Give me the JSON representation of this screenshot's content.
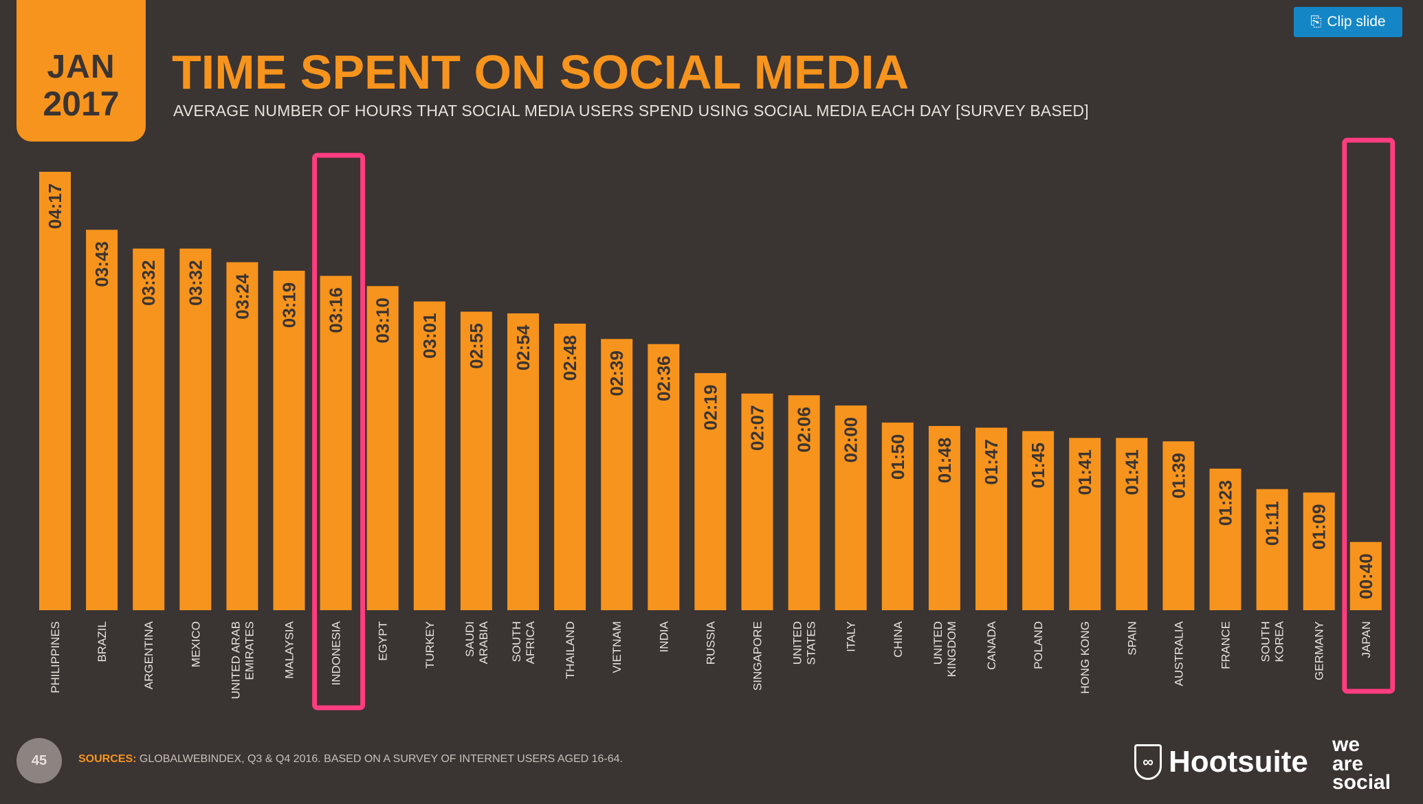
{
  "header": {
    "badge_month": "JAN",
    "badge_year": "2017",
    "title": "TIME SPENT ON SOCIAL MEDIA",
    "subtitle": "AVERAGE NUMBER OF HOURS THAT SOCIAL MEDIA USERS SPEND USING SOCIAL MEDIA EACH DAY [SURVEY BASED]"
  },
  "toolbar": {
    "clip_label": "Clip slide",
    "clip_icon": "clip-icon"
  },
  "footer": {
    "page_number": "45",
    "sources_label": "SOURCES:",
    "sources_text": "GLOBALWEBINDEX, Q3 & Q4 2016. BASED ON A SURVEY OF INTERNET USERS AGED 16-64.",
    "brand_hootsuite": "Hootsuite",
    "brand_was": [
      "we",
      "are",
      "social"
    ]
  },
  "colors": {
    "background": "#3a3432",
    "bar": "#f7941d",
    "bar_label": "#3a3432",
    "highlight": "#ff3d7f",
    "axis_label": "#e8e2dc"
  },
  "chart_data": {
    "type": "bar",
    "title": "TIME SPENT ON SOCIAL MEDIA",
    "xlabel": "",
    "ylabel": "",
    "value_unit": "minutes",
    "ylim": [
      0,
      257
    ],
    "categories": [
      [
        "PHILIPPINES"
      ],
      [
        "BRAZIL"
      ],
      [
        "ARGENTINA"
      ],
      [
        "MEXICO"
      ],
      [
        "UNITED ARAB",
        "EMIRATES"
      ],
      [
        "MALAYSIA"
      ],
      [
        "INDONESIA"
      ],
      [
        "EGYPT"
      ],
      [
        "TURKEY"
      ],
      [
        "SAUDI",
        "ARABIA"
      ],
      [
        "SOUTH",
        "AFRICA"
      ],
      [
        "THAILAND"
      ],
      [
        "VIETNAM"
      ],
      [
        "INDIA"
      ],
      [
        "RUSSIA"
      ],
      [
        "SINGAPORE"
      ],
      [
        "UNITED",
        "STATES"
      ],
      [
        "ITALY"
      ],
      [
        "CHINA"
      ],
      [
        "UNITED",
        "KINGDOM"
      ],
      [
        "CANADA"
      ],
      [
        "POLAND"
      ],
      [
        "HONG KONG"
      ],
      [
        "SPAIN"
      ],
      [
        "AUSTRALIA"
      ],
      [
        "FRANCE"
      ],
      [
        "SOUTH",
        "KOREA"
      ],
      [
        "GERMANY"
      ],
      [
        "JAPAN"
      ]
    ],
    "labels": [
      "04:17",
      "03:43",
      "03:32",
      "03:32",
      "03:24",
      "03:19",
      "03:16",
      "03:10",
      "03:01",
      "02:55",
      "02:54",
      "02:48",
      "02:39",
      "02:36",
      "02:19",
      "02:07",
      "02:06",
      "02:00",
      "01:50",
      "01:48",
      "01:47",
      "01:45",
      "01:41",
      "01:41",
      "01:39",
      "01:23",
      "01:11",
      "01:09",
      "00:40"
    ],
    "values": [
      257,
      223,
      212,
      212,
      204,
      199,
      196,
      190,
      181,
      175,
      174,
      168,
      159,
      156,
      139,
      127,
      126,
      120,
      110,
      108,
      107,
      105,
      101,
      101,
      99,
      83,
      71,
      69,
      40
    ],
    "highlighted": [
      "INDONESIA",
      "JAPAN"
    ],
    "grid": false,
    "legend": "none"
  }
}
